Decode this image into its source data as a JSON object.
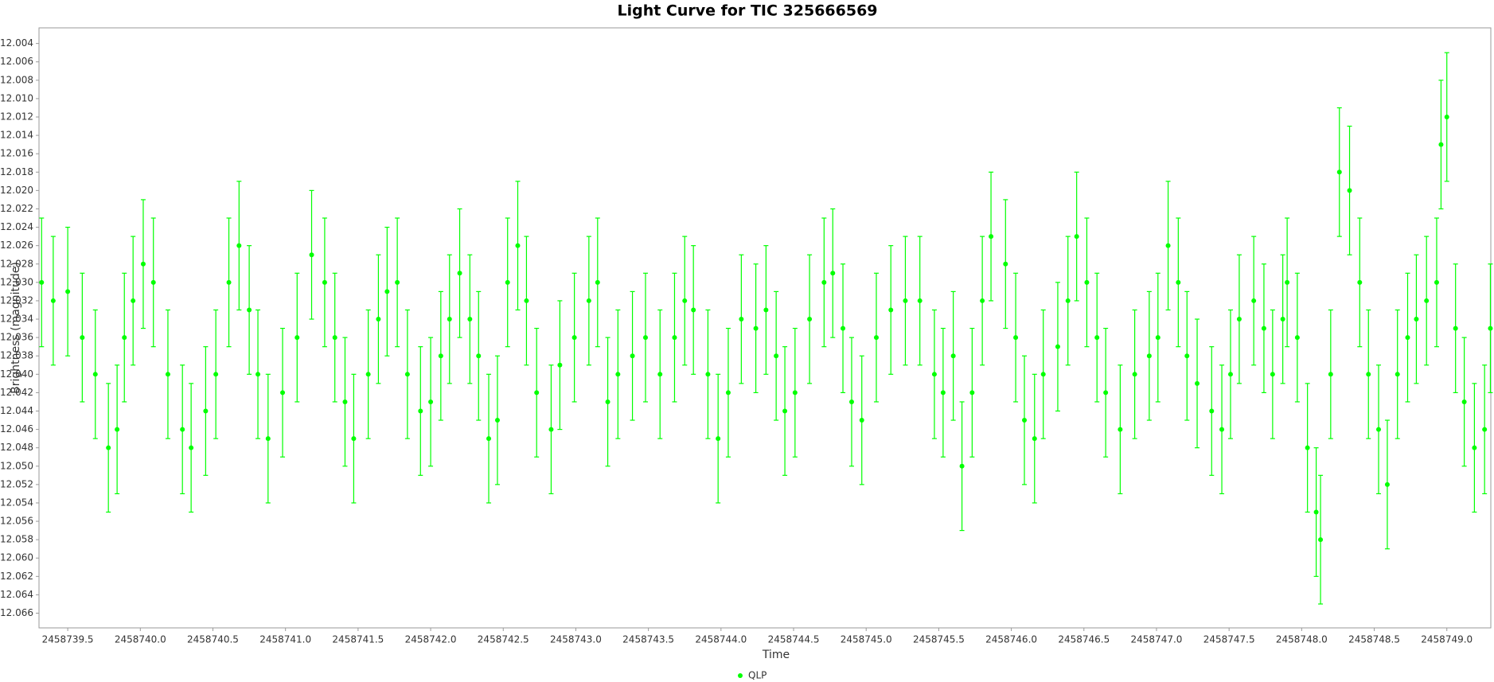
{
  "chart_data": {
    "type": "scatter",
    "title": "Light Curve for TIC 325666569",
    "x_label": "Time",
    "y_label": "Brightness (magnitude)",
    "xlim": [
      2458739.302,
      2458749.303
    ],
    "ylim": [
      12.0676,
      12.0023
    ],
    "xticks": [
      2458739.5,
      {
        "value": 2458740.0,
        "label": "2458740.0"
      },
      2458740.5,
      {
        "value": 2458741.0,
        "label": "2458741.0"
      },
      2458741.5,
      {
        "value": 2458742.0,
        "label": "2458742.0"
      },
      2458742.5,
      {
        "value": 2458743.0,
        "label": "2458743.0"
      },
      2458743.5,
      {
        "value": 2458744.0,
        "label": "2458744.0"
      },
      2458744.5,
      {
        "value": 2458745.0,
        "label": "2458745.0"
      },
      2458745.5,
      {
        "value": 2458746.0,
        "label": "2458746.0"
      },
      2458746.5,
      {
        "value": 2458747.0,
        "label": "2458747.0"
      },
      2458747.5,
      {
        "value": 2458748.0,
        "label": "2458748.0"
      },
      2458748.5,
      {
        "value": 2458749.0,
        "label": "2458749.0"
      }
    ],
    "yticks": [
      12.004,
      12.006,
      12.008,
      {
        "value": 12.01,
        "label": "12.010"
      },
      12.012,
      12.014,
      12.016,
      12.018,
      {
        "value": 12.02,
        "label": "12.020"
      },
      12.022,
      12.024,
      12.026,
      12.028,
      {
        "value": 12.03,
        "label": "12.030"
      },
      12.032,
      12.034,
      12.036,
      12.038,
      {
        "value": 12.04,
        "label": "12.040"
      },
      12.042,
      12.044,
      12.046,
      12.048,
      {
        "value": 12.05,
        "label": "12.050"
      },
      12.052,
      12.054,
      12.056,
      12.058,
      {
        "value": 12.06,
        "label": "12.060"
      },
      12.062,
      12.064,
      12.066
    ],
    "x": [
      2458739.32,
      2458739.4,
      2458739.5,
      2458739.6,
      2458739.69,
      2458739.78,
      2458739.84,
      2458739.89,
      2458739.95,
      2458740.02,
      2458740.09,
      2458740.19,
      2458740.29,
      2458740.35,
      2458740.45,
      2458740.52,
      2458740.61,
      2458740.68,
      2458740.75,
      2458740.81,
      2458740.88,
      2458740.98,
      2458741.08,
      2458741.18,
      2458741.27,
      2458741.34,
      2458741.41,
      2458741.47,
      2458741.57,
      2458741.64,
      2458741.7,
      2458741.77,
      2458741.84,
      2458741.93,
      2458742.0,
      2458742.07,
      2458742.13,
      2458742.2,
      2458742.27,
      2458742.33,
      2458742.4,
      2458742.46,
      2458742.53,
      2458742.6,
      2458742.66,
      2458742.73,
      2458742.83,
      2458742.89,
      2458742.99,
      2458743.09,
      2458743.15,
      2458743.22,
      2458743.29,
      2458743.39,
      2458743.48,
      2458743.58,
      2458743.68,
      2458743.75,
      2458743.81,
      2458743.91,
      2458743.98,
      2458744.05,
      2458744.14,
      2458744.24,
      2458744.31,
      2458744.38,
      2458744.44,
      2458744.51,
      2458744.61,
      2458744.71,
      2458744.77,
      2458744.84,
      2458744.9,
      2458744.97,
      2458745.07,
      2458745.17,
      2458745.27,
      2458745.37,
      2458745.47,
      2458745.53,
      2458745.6,
      2458745.66,
      2458745.73,
      2458745.8,
      2458745.86,
      2458745.96,
      2458746.03,
      2458746.09,
      2458746.16,
      2458746.22,
      2458746.32,
      2458746.39,
      2458746.45,
      2458746.52,
      2458746.59,
      2458746.65,
      2458746.75,
      2458746.85,
      2458746.95,
      2458747.01,
      2458747.08,
      2458747.15,
      2458747.21,
      2458747.28,
      2458747.38,
      2458747.45,
      2458747.51,
      2458747.57,
      2458747.67,
      2458747.74,
      2458747.8,
      2458747.87,
      2458747.9,
      2458747.97,
      2458748.04,
      2458748.1,
      2458748.13,
      2458748.2,
      2458748.26,
      2458748.33,
      2458748.4,
      2458748.46,
      2458748.53,
      2458748.59,
      2458748.66,
      2458748.73,
      2458748.79,
      2458748.86,
      2458748.93,
      2458748.96,
      2458749.0,
      2458749.06,
      2458749.12,
      2458749.19,
      2458749.26,
      2458749.3
    ],
    "series": [
      {
        "name": "QLP",
        "color": "#00ff00",
        "values": [
          12.03,
          12.032,
          12.031,
          12.036,
          12.04,
          12.048,
          12.046,
          12.036,
          12.032,
          12.028,
          12.03,
          12.04,
          12.046,
          12.048,
          12.044,
          12.04,
          12.03,
          12.026,
          12.033,
          12.04,
          12.047,
          12.042,
          12.036,
          12.027,
          12.03,
          12.036,
          12.043,
          12.047,
          12.04,
          12.034,
          12.031,
          12.03,
          12.04,
          12.044,
          12.043,
          12.038,
          12.034,
          12.029,
          12.034,
          12.038,
          12.047,
          12.045,
          12.03,
          12.026,
          12.032,
          12.042,
          12.046,
          12.039,
          12.036,
          12.032,
          12.03,
          12.043,
          12.04,
          12.038,
          12.036,
          12.04,
          12.036,
          12.032,
          12.033,
          12.04,
          12.047,
          12.042,
          12.034,
          12.035,
          12.033,
          12.038,
          12.044,
          12.042,
          12.034,
          12.03,
          12.029,
          12.035,
          12.043,
          12.045,
          12.036,
          12.033,
          12.032,
          12.032,
          12.04,
          12.042,
          12.038,
          12.05,
          12.042,
          12.032,
          12.025,
          12.028,
          12.036,
          12.045,
          12.047,
          12.04,
          12.037,
          12.032,
          12.025,
          12.03,
          12.036,
          12.042,
          12.046,
          12.04,
          12.038,
          12.036,
          12.026,
          12.03,
          12.038,
          12.041,
          12.044,
          12.046,
          12.04,
          12.034,
          12.032,
          12.035,
          12.04,
          12.034,
          12.03,
          12.036,
          12.048,
          12.055,
          12.058,
          12.04,
          12.018,
          12.02,
          12.03,
          12.04,
          12.046,
          12.052,
          12.04,
          12.036,
          12.034,
          12.032,
          12.03,
          12.015,
          12.012,
          12.035,
          12.043,
          12.048,
          12.046,
          12.035
        ],
        "errors": [
          0.007,
          0.007,
          0.007,
          0.007,
          0.007,
          0.007,
          0.007,
          0.007,
          0.007,
          0.007,
          0.007,
          0.007,
          0.007,
          0.007,
          0.007,
          0.007,
          0.007,
          0.007,
          0.007,
          0.007,
          0.007,
          0.007,
          0.007,
          0.007,
          0.007,
          0.007,
          0.007,
          0.007,
          0.007,
          0.007,
          0.007,
          0.007,
          0.007,
          0.007,
          0.007,
          0.007,
          0.007,
          0.007,
          0.007,
          0.007,
          0.007,
          0.007,
          0.007,
          0.007,
          0.007,
          0.007,
          0.007,
          0.007,
          0.007,
          0.007,
          0.007,
          0.007,
          0.007,
          0.007,
          0.007,
          0.007,
          0.007,
          0.007,
          0.007,
          0.007,
          0.007,
          0.007,
          0.007,
          0.007,
          0.007,
          0.007,
          0.007,
          0.007,
          0.007,
          0.007,
          0.007,
          0.007,
          0.007,
          0.007,
          0.007,
          0.007,
          0.007,
          0.007,
          0.007,
          0.007,
          0.007,
          0.007,
          0.007,
          0.007,
          0.007,
          0.007,
          0.007,
          0.007,
          0.007,
          0.007,
          0.007,
          0.007,
          0.007,
          0.007,
          0.007,
          0.007,
          0.007,
          0.007,
          0.007,
          0.007,
          0.007,
          0.007,
          0.007,
          0.007,
          0.007,
          0.007,
          0.007,
          0.007,
          0.007,
          0.007,
          0.007,
          0.007,
          0.007,
          0.007,
          0.007,
          0.007,
          0.007,
          0.007,
          0.007,
          0.007,
          0.007,
          0.007,
          0.007,
          0.007,
          0.007,
          0.007,
          0.007,
          0.007,
          0.007,
          0.007,
          0.007,
          0.007,
          0.007,
          0.007,
          0.007,
          0.007
        ]
      }
    ]
  }
}
